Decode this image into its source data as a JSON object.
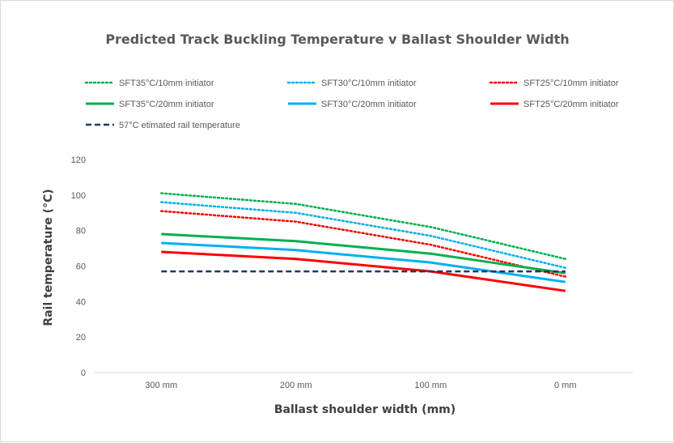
{
  "chart_data": {
    "type": "line",
    "title": "Predicted Track Buckling Temperature v Ballast Shoulder Width",
    "xlabel": "Ballast shoulder width (mm)",
    "ylabel": "Rail temperature (°C)",
    "categories": [
      "300 mm",
      "200 mm",
      "100 mm",
      "0 mm"
    ],
    "ylim": [
      0,
      120
    ],
    "yticks": [
      0,
      20,
      40,
      60,
      80,
      100,
      120
    ],
    "grid": false,
    "legend_position": "top",
    "series": [
      {
        "name": "SFT35°C/10mm initiator",
        "values": [
          101,
          95,
          82,
          64
        ],
        "color": "#00b050",
        "style": "dotted"
      },
      {
        "name": "SFT30°C/10mm initiator",
        "values": [
          96,
          90,
          77,
          59
        ],
        "color": "#00b0f0",
        "style": "dotted"
      },
      {
        "name": "SFT25°C/10mm initiator",
        "values": [
          91,
          85,
          72,
          54
        ],
        "color": "#ff0000",
        "style": "dotted"
      },
      {
        "name": "SFT35°C/20mm initiator",
        "values": [
          78,
          74,
          67,
          56
        ],
        "color": "#00b050",
        "style": "solid"
      },
      {
        "name": "SFT30°C/20mm initiator",
        "values": [
          73,
          69,
          62,
          51
        ],
        "color": "#00b0f0",
        "style": "solid"
      },
      {
        "name": "SFT25°C/20mm initiator",
        "values": [
          68,
          64,
          57,
          46
        ],
        "color": "#ff0000",
        "style": "solid"
      },
      {
        "name": "57°C etimated rail temperature",
        "values": [
          57,
          57,
          57,
          57
        ],
        "color": "#1f3864",
        "style": "dashed"
      }
    ]
  }
}
